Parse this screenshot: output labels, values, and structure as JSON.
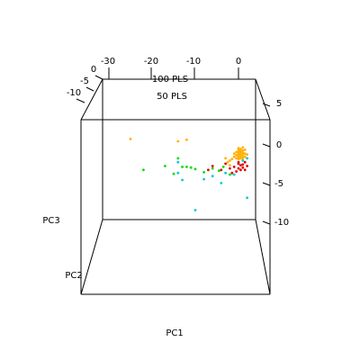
{
  "chart_data": {
    "type": "scatter",
    "title": "",
    "axes": {
      "x": {
        "label": "PC1",
        "ticks": [
          "-30",
          "-20",
          "-10",
          "0"
        ]
      },
      "y": {
        "label": "PC2",
        "ticks": [
          "0",
          "-5",
          "-10"
        ]
      },
      "z": {
        "label": "PC3",
        "ticks": [
          "5",
          "0",
          "-5",
          "-10"
        ]
      }
    },
    "legend": {
      "placement": "top",
      "entries": [
        {
          "name": "100 PLS",
          "color": "#FFB000"
        },
        {
          "name": "50 PLS",
          "color": "#E00000"
        }
      ]
    },
    "series": [
      {
        "name": "100 PLS",
        "color": "#FFB000",
        "points": [
          [
            -25,
            -5,
            1
          ],
          [
            -14,
            -5,
            0.7
          ],
          [
            -12,
            -5,
            0.9
          ],
          [
            0,
            -5,
            -0.2
          ],
          [
            0,
            -5,
            -0.4
          ],
          [
            0,
            -5,
            -0.6
          ],
          [
            0,
            -5,
            -0.8
          ],
          [
            0,
            -5,
            -1.0
          ],
          [
            0,
            -5,
            -1.2
          ],
          [
            0,
            -5,
            -1.4
          ],
          [
            0,
            -5,
            -1.6
          ],
          [
            0.5,
            -5,
            -0.3
          ],
          [
            0.5,
            -5,
            -0.6
          ],
          [
            0.5,
            -5,
            -0.9
          ],
          [
            0.5,
            -5,
            -1.2
          ],
          [
            0.5,
            -5,
            -1.5
          ],
          [
            1,
            -5,
            -0.1
          ],
          [
            1,
            -5,
            -0.5
          ],
          [
            1,
            -5,
            -0.8
          ],
          [
            1,
            -5,
            -1.1
          ],
          [
            1,
            -5,
            -1.4
          ],
          [
            1,
            -5,
            -1.7
          ],
          [
            1.5,
            -5,
            -0.4
          ],
          [
            1.5,
            -5,
            -0.9
          ],
          [
            1.5,
            -5,
            -1.3
          ],
          [
            -0.5,
            -5,
            -0.7
          ],
          [
            -0.5,
            -5,
            -1.1
          ],
          [
            -0.5,
            -5,
            -1.5
          ],
          [
            -1,
            -5,
            -0.9
          ],
          [
            -1,
            -5,
            -1.3
          ],
          [
            -1.5,
            -5,
            -1.6
          ],
          [
            -2,
            -5,
            -1.8
          ],
          [
            -2.5,
            -5,
            -2.0
          ],
          [
            -3,
            -5,
            -1.5
          ],
          [
            -2,
            -5,
            -2.4
          ],
          [
            2,
            -5,
            -1.0
          ]
        ]
      },
      {
        "name": "50 PLS",
        "color": "#E00000",
        "points": [
          [
            -6,
            -5,
            -2.5
          ],
          [
            -4,
            -5,
            -3.0
          ],
          [
            -3,
            -5,
            -2.2
          ],
          [
            -2,
            -5,
            -2.8
          ],
          [
            -1,
            -5,
            -2.6
          ],
          [
            -0.5,
            -5,
            -3.2
          ],
          [
            0,
            -5,
            -2.2
          ],
          [
            0,
            -5,
            -2.8
          ],
          [
            0.5,
            -5,
            -2.4
          ],
          [
            0.5,
            -5,
            -3.0
          ],
          [
            1,
            -5,
            -2.3
          ],
          [
            1,
            -5,
            -2.7
          ],
          [
            1.5,
            -5,
            -2.0
          ],
          [
            1.5,
            -5,
            -3.0
          ],
          [
            2,
            -5,
            -2.5
          ],
          [
            0,
            -5,
            -2.0
          ],
          [
            -1.5,
            -5,
            -3.4
          ],
          [
            -7,
            -5,
            -3.0
          ]
        ]
      },
      {
        "name": "",
        "color": "#00DD00",
        "points": [
          [
            -22,
            -5,
            -3.0
          ],
          [
            -17,
            -5,
            -2.5
          ],
          [
            -14,
            -5,
            -1.5
          ],
          [
            -13,
            -5,
            -2.6
          ],
          [
            -12,
            -5,
            -2.6
          ],
          [
            -11,
            -5,
            -2.7
          ],
          [
            -10,
            -5,
            -2.9
          ],
          [
            -8,
            -5,
            -3.3
          ],
          [
            -6,
            -5,
            -2.8
          ],
          [
            -4.5,
            -5,
            -3.1
          ],
          [
            -3.5,
            -5,
            -2.6
          ],
          [
            -2,
            -5,
            -3.6
          ],
          [
            -15,
            -5,
            -3.5
          ]
        ]
      },
      {
        "name": "",
        "color": "#00CCCC",
        "points": [
          [
            -14,
            -5,
            -3.4
          ],
          [
            -13,
            -5,
            -4.3
          ],
          [
            -8,
            -5,
            -4.2
          ],
          [
            -4,
            -5,
            -4.7
          ],
          [
            -3,
            -5,
            -3.4
          ],
          [
            -1,
            -5,
            -3.6
          ],
          [
            1,
            -5,
            -1.8
          ],
          [
            2,
            -5,
            -1.5
          ],
          [
            2,
            -5,
            -6.6
          ],
          [
            -10,
            -5,
            -8.2
          ],
          [
            -6,
            -5,
            -3.8
          ],
          [
            -14,
            -5,
            -2.0
          ]
        ]
      }
    ]
  }
}
